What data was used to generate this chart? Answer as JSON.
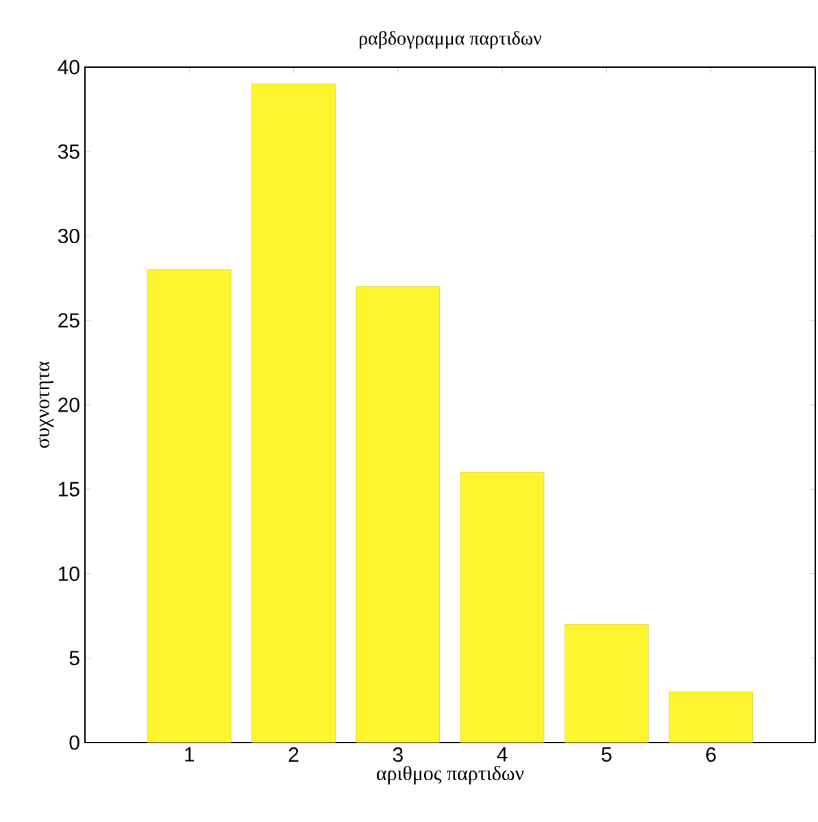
{
  "chart_data": {
    "type": "bar",
    "title": "ραβδογραμμα παρτιδων",
    "xlabel": "αριθμος παρτιδων",
    "ylabel": "συχνοτητα",
    "categories": [
      "1",
      "2",
      "3",
      "4",
      "5",
      "6"
    ],
    "values": [
      28,
      39,
      27,
      16,
      7,
      3
    ],
    "color": "#fff52e",
    "ylim": [
      0,
      40
    ],
    "yticks": [
      0,
      5,
      10,
      15,
      20,
      25,
      30,
      35,
      40
    ],
    "grid": false
  }
}
